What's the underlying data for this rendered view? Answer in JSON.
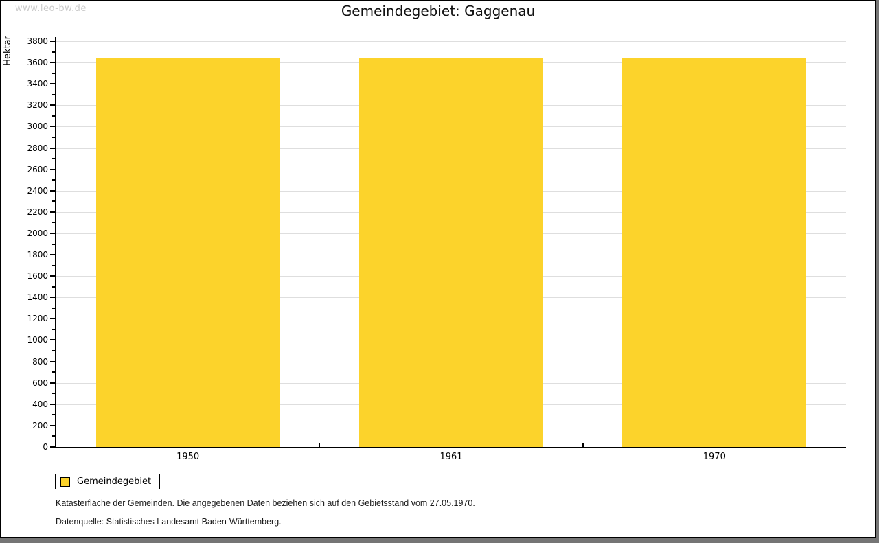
{
  "watermark": "www.leo-bw.de",
  "title": "Gemeindegebiet: Gaggenau",
  "chart_data": {
    "type": "bar",
    "title": "Gemeindegebiet: Gaggenau",
    "categories": [
      "1950",
      "1961",
      "1970"
    ],
    "series": [
      {
        "name": "Gemeindegebiet",
        "color": "#FCD32B",
        "values": [
          3645,
          3645,
          3645
        ]
      }
    ],
    "xlabel": "",
    "ylabel": "Hektar",
    "ylim": [
      0,
      3800
    ],
    "ytick_major": 200,
    "ytick_minor": 100,
    "grid": true,
    "legend_position": "bottom-left"
  },
  "legend": {
    "items": [
      {
        "label": "Gemeindegebiet",
        "color": "#FCD32B"
      }
    ]
  },
  "footnotes": [
    "Katasterfläche der Gemeinden. Die angegebenen Daten beziehen sich auf den Gebietsstand vom 27.05.1970.",
    "Datenquelle: Statistisches Landesamt Baden-Württemberg."
  ],
  "colors": {
    "bar": "#FCD32B",
    "gridline": "#dedede",
    "axis": "#000000",
    "watermark": "#cbcbcb",
    "frame_shadow": "#757575"
  }
}
